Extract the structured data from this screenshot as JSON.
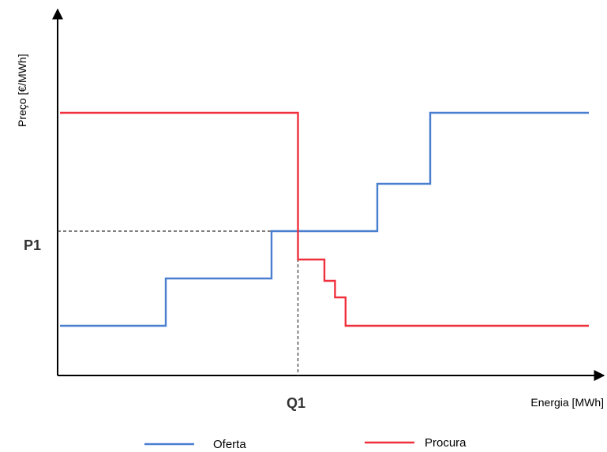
{
  "chart_data": {
    "type": "line",
    "title": "",
    "xlabel": "Energia [MWh]",
    "ylabel": "Preço [€/MWh]",
    "xlim": [
      0,
      100
    ],
    "ylim": [
      0,
      100
    ],
    "grid": false,
    "legend_position": "bottom",
    "series": [
      {
        "name": "Oferta",
        "color": "#4a7fd0",
        "points": [
          [
            0,
            10
          ],
          [
            20,
            10
          ],
          [
            20,
            30
          ],
          [
            40,
            30
          ],
          [
            40,
            50
          ],
          [
            60,
            50
          ],
          [
            60,
            70
          ],
          [
            70,
            70
          ],
          [
            70,
            100
          ],
          [
            100,
            100
          ]
        ]
      },
      {
        "name": "Procura",
        "color": "#f0303c",
        "points": [
          [
            0,
            100
          ],
          [
            45,
            100
          ],
          [
            45,
            38
          ],
          [
            50,
            38
          ],
          [
            50,
            29
          ],
          [
            52,
            29
          ],
          [
            52,
            22
          ],
          [
            54,
            22
          ],
          [
            54,
            10
          ],
          [
            100,
            10
          ]
        ]
      }
    ],
    "reference_lines": {
      "price": {
        "label": "P1",
        "value": 50
      },
      "quantity": {
        "label": "Q1",
        "value": 45
      }
    }
  }
}
